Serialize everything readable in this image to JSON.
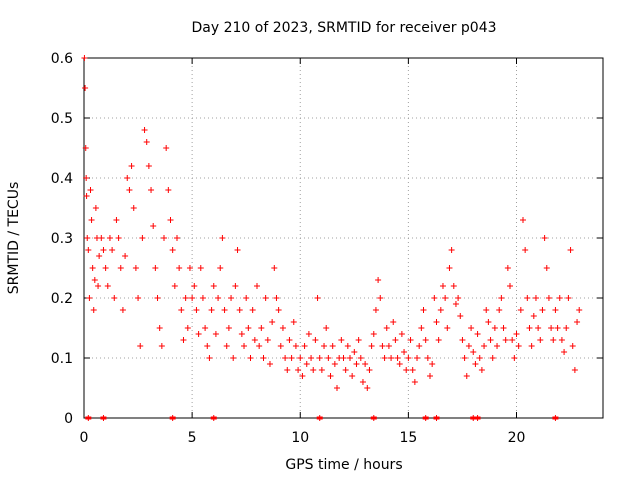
{
  "chart_data": {
    "type": "scatter",
    "title": "Day 210 of 2023, SRMTID for receiver p043",
    "xlabel": "GPS time / hours",
    "ylabel": "SRMTID / TECUs",
    "xlim": [
      0,
      24
    ],
    "ylim": [
      0,
      0.6
    ],
    "xticks": [
      0,
      5,
      10,
      15,
      20
    ],
    "xtick_labels": [
      "0",
      "5",
      "10",
      "15",
      "20"
    ],
    "yticks": [
      0,
      0.1,
      0.2,
      0.3,
      0.4,
      0.5,
      0.6
    ],
    "ytick_labels": [
      "0",
      "0.1",
      "0.2",
      "0.3",
      "0.4",
      "0.5",
      "0.6"
    ],
    "grid": true,
    "marker": "+",
    "color": "#ff0000",
    "series": [
      {
        "name": "SRMTID",
        "points": [
          [
            0.02,
            0.6
          ],
          [
            0.05,
            0.55
          ],
          [
            0.08,
            0.45
          ],
          [
            0.1,
            0.4
          ],
          [
            0.12,
            0.37
          ],
          [
            0.15,
            0.3
          ],
          [
            0.2,
            0.28
          ],
          [
            0.25,
            0.2
          ],
          [
            0.3,
            0.38
          ],
          [
            0.35,
            0.33
          ],
          [
            0.4,
            0.25
          ],
          [
            0.45,
            0.18
          ],
          [
            0.5,
            0.23
          ],
          [
            0.55,
            0.35
          ],
          [
            0.6,
            0.3
          ],
          [
            0.65,
            0.22
          ],
          [
            0.7,
            0.27
          ],
          [
            0.8,
            0.3
          ],
          [
            0.9,
            0.28
          ],
          [
            1.0,
            0.25
          ],
          [
            1.1,
            0.22
          ],
          [
            1.2,
            0.3
          ],
          [
            1.3,
            0.28
          ],
          [
            1.4,
            0.2
          ],
          [
            1.5,
            0.33
          ],
          [
            1.6,
            0.3
          ],
          [
            1.7,
            0.25
          ],
          [
            1.8,
            0.18
          ],
          [
            1.9,
            0.27
          ],
          [
            2.0,
            0.4
          ],
          [
            2.1,
            0.38
          ],
          [
            2.2,
            0.42
          ],
          [
            2.3,
            0.35
          ],
          [
            2.4,
            0.25
          ],
          [
            2.5,
            0.2
          ],
          [
            2.6,
            0.12
          ],
          [
            2.7,
            0.3
          ],
          [
            2.8,
            0.48
          ],
          [
            2.9,
            0.46
          ],
          [
            3.0,
            0.42
          ],
          [
            3.1,
            0.38
          ],
          [
            3.2,
            0.32
          ],
          [
            3.3,
            0.25
          ],
          [
            3.4,
            0.2
          ],
          [
            3.5,
            0.15
          ],
          [
            3.6,
            0.12
          ],
          [
            3.7,
            0.3
          ],
          [
            3.8,
            0.45
          ],
          [
            3.9,
            0.38
          ],
          [
            4.0,
            0.33
          ],
          [
            4.1,
            0.28
          ],
          [
            4.2,
            0.22
          ],
          [
            4.3,
            0.3
          ],
          [
            4.4,
            0.25
          ],
          [
            4.5,
            0.18
          ],
          [
            4.6,
            0.13
          ],
          [
            4.7,
            0.2
          ],
          [
            4.8,
            0.15
          ],
          [
            4.9,
            0.25
          ],
          [
            5.0,
            0.2
          ],
          [
            5.1,
            0.22
          ],
          [
            5.2,
            0.18
          ],
          [
            5.3,
            0.14
          ],
          [
            5.4,
            0.25
          ],
          [
            5.5,
            0.2
          ],
          [
            5.6,
            0.15
          ],
          [
            5.7,
            0.12
          ],
          [
            5.8,
            0.1
          ],
          [
            5.9,
            0.18
          ],
          [
            6.0,
            0.22
          ],
          [
            6.1,
            0.14
          ],
          [
            6.2,
            0.2
          ],
          [
            6.3,
            0.25
          ],
          [
            6.4,
            0.3
          ],
          [
            6.5,
            0.18
          ],
          [
            6.6,
            0.12
          ],
          [
            6.7,
            0.15
          ],
          [
            6.8,
            0.2
          ],
          [
            6.9,
            0.1
          ],
          [
            7.0,
            0.22
          ],
          [
            7.1,
            0.28
          ],
          [
            7.2,
            0.18
          ],
          [
            7.3,
            0.14
          ],
          [
            7.4,
            0.12
          ],
          [
            7.5,
            0.2
          ],
          [
            7.6,
            0.15
          ],
          [
            7.7,
            0.1
          ],
          [
            7.8,
            0.18
          ],
          [
            7.9,
            0.13
          ],
          [
            8.0,
            0.22
          ],
          [
            8.1,
            0.12
          ],
          [
            8.2,
            0.15
          ],
          [
            8.3,
            0.1
          ],
          [
            8.4,
            0.2
          ],
          [
            8.5,
            0.13
          ],
          [
            8.6,
            0.09
          ],
          [
            8.7,
            0.16
          ],
          [
            8.8,
            0.25
          ],
          [
            8.9,
            0.2
          ],
          [
            9.0,
            0.18
          ],
          [
            9.1,
            0.12
          ],
          [
            9.2,
            0.15
          ],
          [
            9.3,
            0.1
          ],
          [
            9.4,
            0.08
          ],
          [
            9.5,
            0.13
          ],
          [
            9.6,
            0.1
          ],
          [
            9.7,
            0.16
          ],
          [
            9.8,
            0.12
          ],
          [
            9.9,
            0.08
          ],
          [
            10.0,
            0.1
          ],
          [
            10.1,
            0.07
          ],
          [
            10.2,
            0.12
          ],
          [
            10.3,
            0.09
          ],
          [
            10.4,
            0.14
          ],
          [
            10.5,
            0.1
          ],
          [
            10.6,
            0.08
          ],
          [
            10.7,
            0.13
          ],
          [
            10.8,
            0.2
          ],
          [
            10.9,
            0.1
          ],
          [
            11.0,
            0.08
          ],
          [
            11.1,
            0.12
          ],
          [
            11.2,
            0.15
          ],
          [
            11.3,
            0.1
          ],
          [
            11.4,
            0.07
          ],
          [
            11.5,
            0.12
          ],
          [
            11.6,
            0.09
          ],
          [
            11.7,
            0.05
          ],
          [
            11.8,
            0.1
          ],
          [
            11.9,
            0.13
          ],
          [
            12.0,
            0.1
          ],
          [
            12.1,
            0.08
          ],
          [
            12.2,
            0.12
          ],
          [
            12.3,
            0.1
          ],
          [
            12.4,
            0.07
          ],
          [
            12.5,
            0.11
          ],
          [
            12.6,
            0.09
          ],
          [
            12.7,
            0.13
          ],
          [
            12.8,
            0.1
          ],
          [
            12.9,
            0.06
          ],
          [
            13.0,
            0.09
          ],
          [
            13.1,
            0.05
          ],
          [
            13.2,
            0.08
          ],
          [
            13.3,
            0.12
          ],
          [
            13.4,
            0.14
          ],
          [
            13.5,
            0.18
          ],
          [
            13.6,
            0.23
          ],
          [
            13.7,
            0.2
          ],
          [
            13.8,
            0.12
          ],
          [
            13.9,
            0.1
          ],
          [
            14.0,
            0.15
          ],
          [
            14.1,
            0.12
          ],
          [
            14.2,
            0.1
          ],
          [
            14.3,
            0.16
          ],
          [
            14.4,
            0.13
          ],
          [
            14.5,
            0.1
          ],
          [
            14.6,
            0.09
          ],
          [
            14.7,
            0.14
          ],
          [
            14.8,
            0.11
          ],
          [
            14.9,
            0.08
          ],
          [
            15.0,
            0.1
          ],
          [
            15.1,
            0.13
          ],
          [
            15.2,
            0.08
          ],
          [
            15.3,
            0.06
          ],
          [
            15.4,
            0.1
          ],
          [
            15.5,
            0.12
          ],
          [
            15.6,
            0.15
          ],
          [
            15.7,
            0.18
          ],
          [
            15.8,
            0.13
          ],
          [
            15.9,
            0.1
          ],
          [
            16.0,
            0.07
          ],
          [
            16.1,
            0.09
          ],
          [
            16.2,
            0.2
          ],
          [
            16.3,
            0.16
          ],
          [
            16.4,
            0.13
          ],
          [
            16.5,
            0.18
          ],
          [
            16.6,
            0.22
          ],
          [
            16.7,
            0.2
          ],
          [
            16.8,
            0.15
          ],
          [
            16.9,
            0.25
          ],
          [
            17.0,
            0.28
          ],
          [
            17.1,
            0.22
          ],
          [
            17.2,
            0.19
          ],
          [
            17.3,
            0.2
          ],
          [
            17.4,
            0.17
          ],
          [
            17.5,
            0.13
          ],
          [
            17.6,
            0.1
          ],
          [
            17.7,
            0.07
          ],
          [
            17.8,
            0.12
          ],
          [
            17.9,
            0.15
          ],
          [
            18.0,
            0.11
          ],
          [
            18.1,
            0.09
          ],
          [
            18.2,
            0.14
          ],
          [
            18.3,
            0.1
          ],
          [
            18.4,
            0.08
          ],
          [
            18.5,
            0.12
          ],
          [
            18.6,
            0.18
          ],
          [
            18.7,
            0.16
          ],
          [
            18.8,
            0.13
          ],
          [
            18.9,
            0.1
          ],
          [
            19.0,
            0.15
          ],
          [
            19.1,
            0.12
          ],
          [
            19.2,
            0.18
          ],
          [
            19.3,
            0.2
          ],
          [
            19.4,
            0.15
          ],
          [
            19.5,
            0.13
          ],
          [
            19.6,
            0.25
          ],
          [
            19.7,
            0.22
          ],
          [
            19.8,
            0.13
          ],
          [
            19.9,
            0.1
          ],
          [
            20.0,
            0.14
          ],
          [
            20.1,
            0.12
          ],
          [
            20.2,
            0.18
          ],
          [
            20.3,
            0.33
          ],
          [
            20.4,
            0.28
          ],
          [
            20.5,
            0.2
          ],
          [
            20.6,
            0.15
          ],
          [
            20.7,
            0.12
          ],
          [
            20.8,
            0.17
          ],
          [
            20.9,
            0.2
          ],
          [
            21.0,
            0.15
          ],
          [
            21.1,
            0.13
          ],
          [
            21.2,
            0.18
          ],
          [
            21.3,
            0.3
          ],
          [
            21.4,
            0.25
          ],
          [
            21.5,
            0.2
          ],
          [
            21.6,
            0.15
          ],
          [
            21.7,
            0.13
          ],
          [
            21.8,
            0.18
          ],
          [
            21.9,
            0.15
          ],
          [
            22.0,
            0.2
          ],
          [
            22.1,
            0.13
          ],
          [
            22.2,
            0.11
          ],
          [
            22.3,
            0.15
          ],
          [
            22.4,
            0.2
          ],
          [
            22.5,
            0.28
          ],
          [
            22.6,
            0.12
          ],
          [
            22.7,
            0.08
          ],
          [
            22.8,
            0.16
          ],
          [
            22.9,
            0.18
          ]
        ],
        "zero_markers_x": [
          0.2,
          0.9,
          4.1,
          6.0,
          10.9,
          13.4,
          15.8,
          16.3,
          18.0,
          18.2,
          21.8
        ]
      }
    ]
  }
}
